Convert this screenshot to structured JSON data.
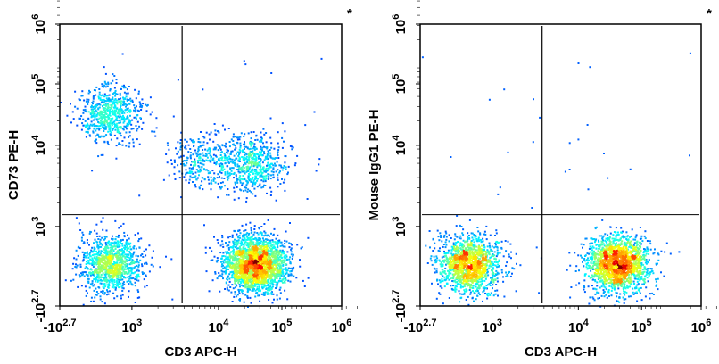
{
  "chart_data": [
    {
      "type": "scatter",
      "subtype": "flow-cytometry-density-dot-plot",
      "xlabel": "CD3 APC-H",
      "ylabel": "CD73 PE-H",
      "corner_mark": "*",
      "x_scale": "biexponential",
      "y_scale": "biexponential",
      "xlim": [
        -501,
        1000000
      ],
      "ylim": [
        -501,
        1000000
      ],
      "x_ticks": [
        {
          "base": "-10",
          "exp": "2.7"
        },
        {
          "base": "10",
          "exp": "3"
        },
        {
          "base": "10",
          "exp": "4"
        },
        {
          "base": "10",
          "exp": "5"
        },
        {
          "base": "10",
          "exp": "6"
        }
      ],
      "y_ticks": [
        {
          "base": "-10",
          "exp": "2.7"
        },
        {
          "base": "10",
          "exp": "3"
        },
        {
          "base": "10",
          "exp": "4"
        },
        {
          "base": "10",
          "exp": "5"
        },
        {
          "base": "10",
          "exp": "6"
        }
      ],
      "quadrant_gate": {
        "x": 3800,
        "y": 1400
      },
      "colormap": "jet-density",
      "populations": [
        {
          "x": 550,
          "y": 300,
          "count": 1100
        },
        {
          "x": 550,
          "y": 25000,
          "count": 650
        },
        {
          "x": 26000,
          "y": 300,
          "count": 2300
        },
        {
          "x": 6500,
          "y": 6500,
          "count": 300
        },
        {
          "x": 24000,
          "y": 6000,
          "count": 600
        }
      ]
    },
    {
      "type": "scatter",
      "subtype": "flow-cytometry-density-dot-plot",
      "xlabel": "CD3 APC-H",
      "ylabel": "Mouse IgG1 PE-H",
      "corner_mark": "*",
      "x_scale": "biexponential",
      "y_scale": "biexponential",
      "xlim": [
        -501,
        1000000
      ],
      "ylim": [
        -501,
        1000000
      ],
      "x_ticks": [
        {
          "base": "-10",
          "exp": "2.7"
        },
        {
          "base": "10",
          "exp": "3"
        },
        {
          "base": "10",
          "exp": "4"
        },
        {
          "base": "10",
          "exp": "5"
        },
        {
          "base": "10",
          "exp": "6"
        }
      ],
      "y_ticks": [
        {
          "base": "-10",
          "exp": "2.7"
        },
        {
          "base": "10",
          "exp": "3"
        },
        {
          "base": "10",
          "exp": "4"
        },
        {
          "base": "10",
          "exp": "5"
        },
        {
          "base": "10",
          "exp": "6"
        }
      ],
      "quadrant_gate": {
        "x": 3800,
        "y": 1400
      },
      "colormap": "jet-density",
      "populations": [
        {
          "x": 500,
          "y": 300,
          "count": 1400
        },
        {
          "x": 28000,
          "y": 300,
          "count": 1800
        }
      ]
    }
  ]
}
